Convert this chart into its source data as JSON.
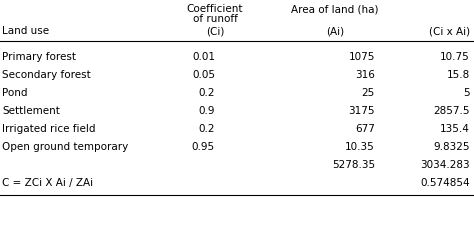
{
  "rows": [
    [
      "Primary forest",
      "0.01",
      "1075",
      "10.75"
    ],
    [
      "Secondary forest",
      "0.05",
      "316",
      "15.8"
    ],
    [
      "Pond",
      "0.2",
      "25",
      "5"
    ],
    [
      "Settlement",
      "0.9",
      "3175",
      "2857.5"
    ],
    [
      "Irrigated rice field",
      "0.2",
      "677",
      "135.4"
    ],
    [
      "Open ground temporary",
      "0.95",
      "10.35",
      "9.8325"
    ]
  ],
  "total_row": [
    "",
    "",
    "5278.35",
    "3034.283"
  ],
  "formula_row": [
    "C = ZCi X Ai / ZAi",
    "",
    "",
    "0.574854"
  ],
  "bg_color": "#ffffff",
  "text_color": "#000000",
  "font_size": 7.5
}
